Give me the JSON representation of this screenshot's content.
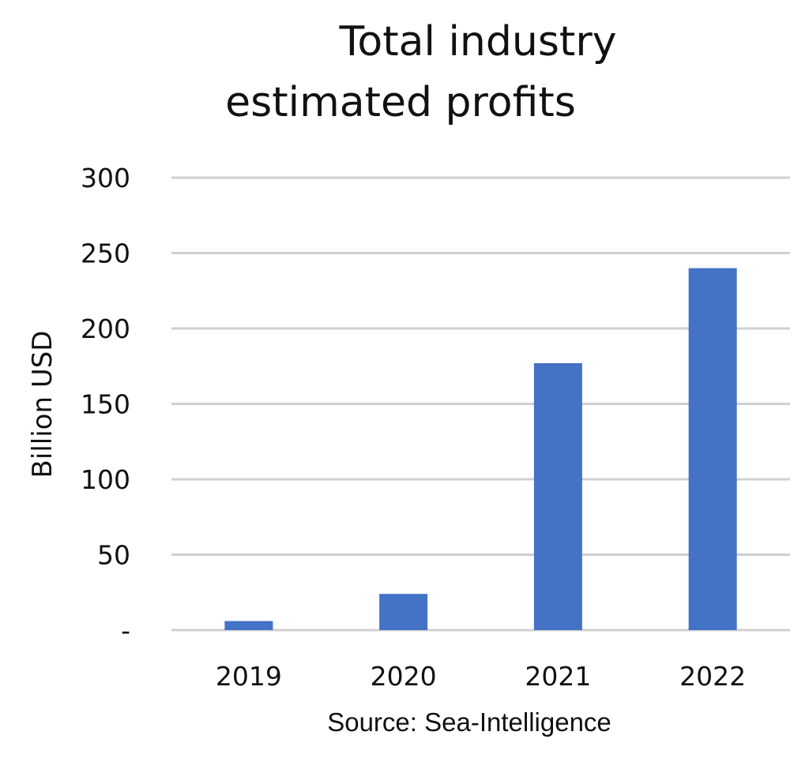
{
  "chart_data": {
    "type": "bar",
    "title_lines": [
      "Total industry",
      "estimated profits"
    ],
    "ylabel": "Billion USD",
    "xlabel": "",
    "categories": [
      "2019",
      "2020",
      "2021",
      "2022"
    ],
    "values": [
      6,
      24,
      177,
      240
    ],
    "ylim": [
      0,
      300
    ],
    "yticks": [
      0,
      50,
      100,
      150,
      200,
      250,
      300
    ],
    "ytick_labels": [
      "-",
      "50",
      "100",
      "150",
      "200",
      "250",
      "300"
    ],
    "grid": true,
    "bar_color": "#4472c4",
    "grid_color": "#d0d0d0",
    "source": "Source: Sea-Intelligence"
  }
}
